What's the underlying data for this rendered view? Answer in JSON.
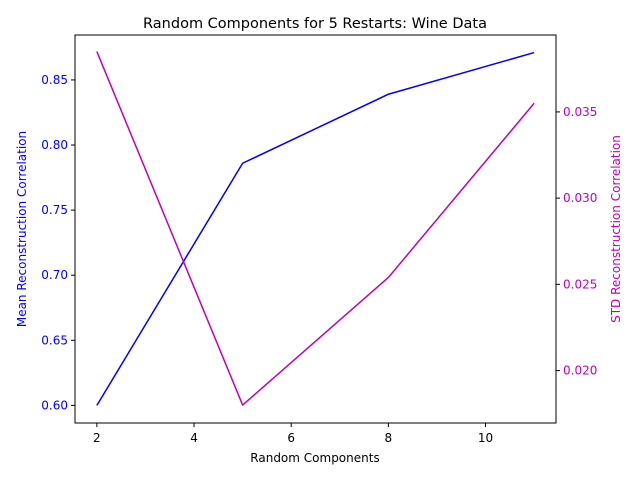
{
  "chart_data": {
    "type": "line",
    "title": "Random Components for 5 Restarts: Wine Data",
    "xlabel": "Random Components",
    "x": [
      2,
      5,
      8,
      11
    ],
    "xticks": [
      2,
      4,
      6,
      8,
      10
    ],
    "xtick_labels": [
      "2",
      "4",
      "6",
      "8",
      "10"
    ],
    "xlim": [
      1.55,
      11.45
    ],
    "axes": {
      "left": {
        "label": "Mean Reconstruction Correlation",
        "color": "#0000ff",
        "ylim": [
          0.5865,
          0.8845
        ],
        "ticks": [
          0.6,
          0.65,
          0.7,
          0.75,
          0.8,
          0.85
        ],
        "tick_labels": [
          "0.60",
          "0.65",
          "0.70",
          "0.75",
          "0.80",
          "0.85"
        ]
      },
      "right": {
        "label": "STD Reconstruction Correlation",
        "color": "#bf00bf",
        "ylim": [
          0.01696,
          0.03946
        ],
        "ticks": [
          0.02,
          0.025,
          0.03,
          0.035
        ],
        "tick_labels": [
          "0.020",
          "0.025",
          "0.030",
          "0.035"
        ]
      }
    },
    "series": [
      {
        "axis": "left",
        "color": "#0000ff",
        "values": [
          0.6,
          0.786,
          0.839,
          0.871
        ]
      },
      {
        "axis": "right",
        "color": "#bf00bf",
        "values": [
          0.0385,
          0.018,
          0.0254,
          0.0355
        ]
      }
    ],
    "grid": false,
    "legend": "none"
  }
}
